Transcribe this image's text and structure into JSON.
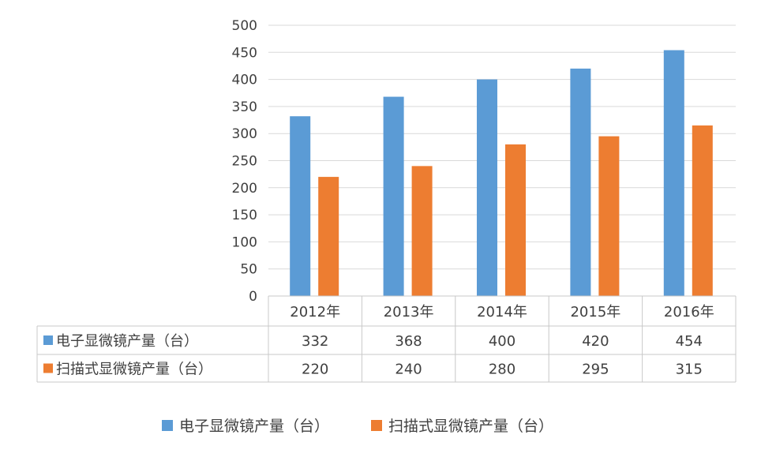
{
  "chart_data": {
    "type": "bar",
    "title": "",
    "xlabel": "",
    "ylabel": "",
    "categories": [
      "2012年",
      "2013年",
      "2014年",
      "2015年",
      "2016年"
    ],
    "series": [
      {
        "name": "电子显微镜产量（台）",
        "values": [
          332,
          368,
          400,
          420,
          454
        ],
        "color": "#5B9BD5"
      },
      {
        "name": "扫描式显微镜产量（台）",
        "values": [
          220,
          240,
          280,
          295,
          315
        ],
        "color": "#ED7D31"
      }
    ],
    "ylim": [
      0,
      500
    ],
    "yticks": [
      0,
      50,
      100,
      150,
      200,
      250,
      300,
      350,
      400,
      450,
      500
    ],
    "grid": true,
    "legend": "bottom",
    "data_table": true
  }
}
